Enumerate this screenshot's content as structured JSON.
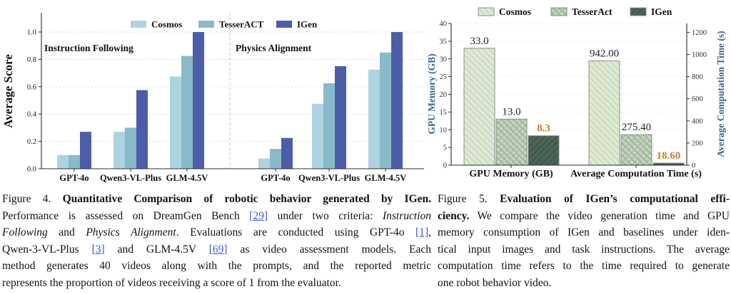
{
  "colors": {
    "citation_link": "#4255d4",
    "fig4_series": [
      "#aed3e0",
      "#88bac9",
      "#4c5ea7"
    ],
    "fig5_fills": [
      "#dde9d3",
      "#c4d5be",
      "#4a6456"
    ],
    "fig5_hatch_lines": [
      "#b2cba1",
      "#9cae97",
      "#2f473a"
    ],
    "fig5_bar_edge": "#8c8c8c",
    "fig5_axis_label": "#3a648e",
    "fig5_highlight": "#c8802e",
    "text": "#111111"
  },
  "chart_data": [
    {
      "id": "figure4",
      "type": "bar",
      "title": "",
      "ylabel": "Average Score",
      "ylim": [
        0,
        1.13
      ],
      "yticks": [
        "0.0",
        "0.2",
        "0.4",
        "0.6",
        "0.8",
        "1.0"
      ],
      "grid": "dashed horizontal gridlines at each y tick",
      "legend": [
        "Cosmos",
        "TesserACT",
        "IGen"
      ],
      "legend_position": "top center inside",
      "panels": [
        {
          "label": "Instruction Following",
          "categories": [
            "GPT-4o",
            "Qwen3-VL-Plus",
            "GLM-4.5V"
          ],
          "series": [
            {
              "name": "Cosmos",
              "values": [
                0.1,
                0.27,
                0.675
              ]
            },
            {
              "name": "TesserACT",
              "values": [
                0.1,
                0.3,
                0.825
              ]
            },
            {
              "name": "IGen",
              "values": [
                0.27,
                0.575,
                1.0
              ]
            }
          ]
        },
        {
          "label": "Physics Alignment",
          "categories": [
            "GPT-4o",
            "Qwen3-VL-Plus",
            "GLM-4.5V"
          ],
          "series": [
            {
              "name": "Cosmos",
              "values": [
                0.075,
                0.475,
                0.725
              ]
            },
            {
              "name": "TesserACT",
              "values": [
                0.145,
                0.625,
                0.85
              ]
            },
            {
              "name": "IGen",
              "values": [
                0.225,
                0.75,
                1.0
              ]
            }
          ]
        }
      ]
    },
    {
      "id": "figure5",
      "type": "bar",
      "title": "",
      "legend": [
        "Cosmos",
        "TesserAct",
        "IGen"
      ],
      "legend_position": "top center",
      "hatches": [
        "/",
        "x",
        "\\"
      ],
      "ylabel_left": "GPU Memory (GB)",
      "ylabel_right": "Average Computation Time (s)",
      "ylim_left": [
        0,
        40
      ],
      "ylim_right": [
        0,
        1280
      ],
      "yticks_left": [
        0,
        5,
        10,
        15,
        20,
        25,
        30,
        35,
        40
      ],
      "yticks_right": [
        0,
        200,
        400,
        600,
        800,
        1000,
        1200
      ],
      "grid": "dotted horizontal gridlines",
      "groups": [
        {
          "label": "GPU Memory (GB)",
          "axis": "left",
          "values": [
            33.0,
            13.0,
            8.3
          ],
          "value_labels": [
            "33.0",
            "13.0",
            "8.3"
          ]
        },
        {
          "label": "Average Computation Time (s)",
          "axis": "right",
          "values": [
            942.0,
            275.4,
            18.6
          ],
          "value_labels": [
            "942.00",
            "275.40",
            "18.60"
          ]
        }
      ]
    }
  ],
  "figure4": {
    "caption_lines": [
      [
        {
          "t": "Figure 4. ",
          "s": "n"
        },
        {
          "t": "Quantitative Comparison of robotic behavior generated by IGen.",
          "s": "b"
        }
      ],
      [
        {
          "t": "Performance is assessed on DreamGen Bench ",
          "s": "n"
        },
        {
          "t": "[29]",
          "s": "c"
        },
        {
          "t": " under two criteria: ",
          "s": "n"
        },
        {
          "t": "Instruction",
          "s": "i"
        }
      ],
      [
        {
          "t": "Following",
          "s": "i"
        },
        {
          "t": " and ",
          "s": "n"
        },
        {
          "t": "Physics Alignment",
          "s": "i"
        },
        {
          "t": ". Evaluations are conducted using GPT-4o ",
          "s": "n"
        },
        {
          "t": "[1]",
          "s": "c"
        },
        {
          "t": ",",
          "s": "n"
        }
      ],
      [
        {
          "t": "Qwen-3-VL-Plus ",
          "s": "n"
        },
        {
          "t": "[3]",
          "s": "c"
        },
        {
          "t": " and GLM-4.5V ",
          "s": "n"
        },
        {
          "t": "[69]",
          "s": "c"
        },
        {
          "t": " as video assessment models. Each",
          "s": "n"
        }
      ],
      [
        {
          "t": "method generates 40 videos along with the prompts, and the reported metric",
          "s": "n"
        }
      ],
      [
        {
          "t": "represents the proportion of videos receiving a score of 1 from the evaluator.",
          "s": "n"
        }
      ]
    ]
  },
  "figure5": {
    "caption_lines": [
      [
        {
          "t": "Figure 5. ",
          "s": "n"
        },
        {
          "t": "Evaluation of IGen’s computational effi-",
          "s": "b"
        }
      ],
      [
        {
          "t": "ciency.",
          "s": "b"
        },
        {
          "t": " We compare the video generation time and GPU",
          "s": "n"
        }
      ],
      [
        {
          "t": "memory consumption of IGen and baselines under iden-",
          "s": "n"
        }
      ],
      [
        {
          "t": "tical input images and task instructions. The average",
          "s": "n"
        }
      ],
      [
        {
          "t": "computation time refers to the time required to generate",
          "s": "n"
        }
      ],
      [
        {
          "t": "one robot behavior video.",
          "s": "n"
        }
      ]
    ]
  }
}
